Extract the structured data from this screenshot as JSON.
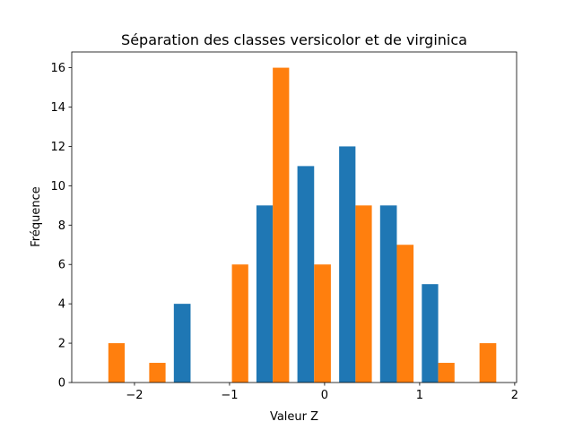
{
  "chart_data": {
    "type": "histogram",
    "title": "Séparation des classes versicolor et de virginica",
    "xlabel": "Valeur Z",
    "ylabel": "Fréquence",
    "bins": [
      -2.49,
      -2.06,
      -1.63,
      -1.19,
      -0.76,
      -0.33,
      0.11,
      0.54,
      0.98,
      1.41,
      1.85
    ],
    "series": [
      {
        "color": "#1f77b4",
        "values": [
          0,
          0,
          4,
          0,
          9,
          11,
          12,
          9,
          5,
          0
        ]
      },
      {
        "color": "#ff7f0e",
        "values": [
          2,
          1,
          0,
          6,
          16,
          6,
          9,
          7,
          1,
          2
        ]
      }
    ],
    "xlim": [
      -2.66,
      2.02
    ],
    "xticks": [
      {
        "value": -2,
        "label": "−2"
      },
      {
        "value": -1,
        "label": "−1"
      },
      0,
      1,
      2
    ],
    "ylim": [
      0,
      16.8
    ],
    "yticks": [
      0,
      2,
      4,
      6,
      8,
      10,
      12,
      14,
      16
    ],
    "grid": false
  }
}
